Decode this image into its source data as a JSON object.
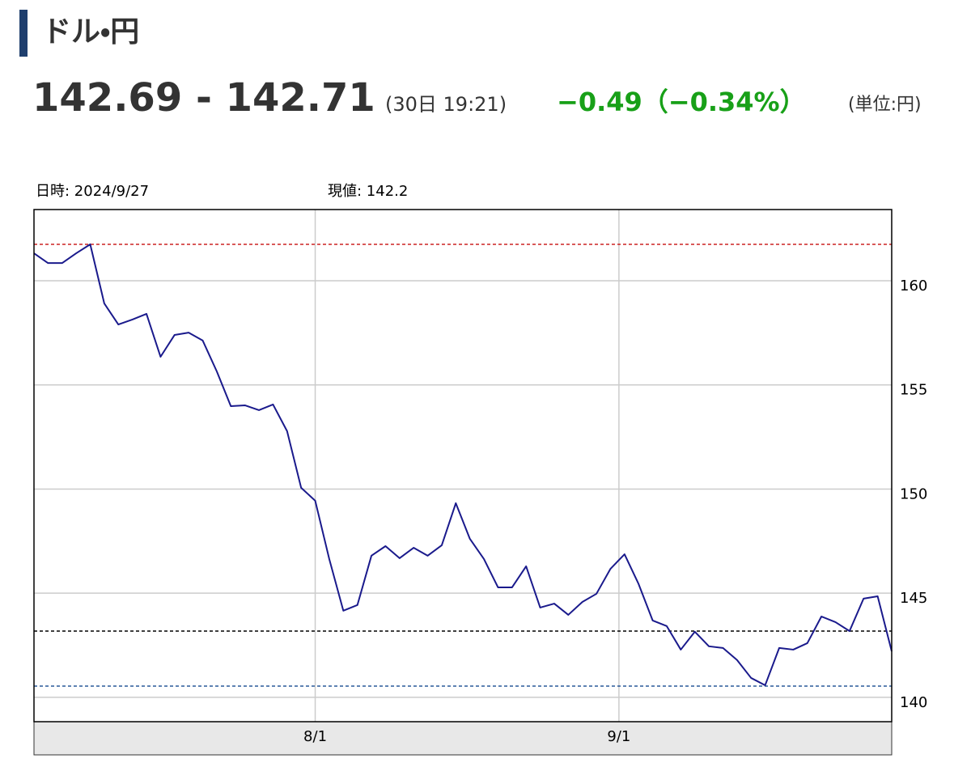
{
  "header": {
    "title": "ドル・円",
    "price": "142.69 - 142.71",
    "time": "(30日 19:21)",
    "change": "−0.49（−0.34%）",
    "unit": "(単位:円)"
  },
  "info": {
    "date": "日時: 2024/9/27",
    "current": "現値: 142.2"
  },
  "chart_data": {
    "type": "line",
    "x": [
      0,
      1,
      2,
      3,
      4,
      5,
      6,
      7,
      8,
      9,
      10,
      11,
      12,
      13,
      14,
      15,
      16,
      17,
      18,
      19,
      20,
      21,
      22,
      23,
      24,
      25,
      26,
      27,
      28,
      29,
      30,
      31,
      32,
      33,
      34,
      35,
      36,
      37,
      38,
      39,
      40,
      41,
      42,
      43,
      44,
      45,
      46,
      47,
      48,
      49,
      50,
      51,
      52,
      53,
      54,
      55,
      56,
      57,
      58,
      59,
      60,
      61
    ],
    "series": [
      {
        "color": "#1a1a8c",
        "values": [
          161.32,
          160.85,
          160.85,
          161.32,
          161.75,
          158.91,
          157.9,
          158.14,
          158.41,
          156.35,
          157.4,
          157.51,
          157.13,
          155.65,
          153.98,
          154.02,
          153.79,
          154.06,
          152.78,
          150.06,
          149.44,
          146.64,
          144.16,
          144.43,
          146.8,
          147.26,
          146.68,
          147.18,
          146.8,
          147.3,
          149.32,
          147.61,
          146.64,
          145.28,
          145.28,
          146.29,
          144.31,
          144.5,
          143.96,
          144.58,
          144.97,
          146.17,
          146.87,
          145.44,
          143.69,
          143.42,
          142.29,
          143.15,
          142.45,
          142.37,
          141.79,
          140.93,
          140.58,
          142.37,
          142.29,
          142.6,
          143.88,
          143.61,
          143.18,
          144.74,
          144.85,
          142.21
        ]
      }
    ],
    "xlim": [
      0,
      61
    ],
    "xticks": [
      {
        "value": 20,
        "label": "8/1"
      },
      {
        "value": 41.6,
        "label": "9/1"
      }
    ],
    "ylim": [
      138.83,
      163.42
    ],
    "yticks": [
      140,
      145,
      150,
      155,
      160
    ],
    "grid": true,
    "ref_lines": [
      {
        "value": 161.75,
        "color": "#cc2222"
      },
      {
        "value": 143.18,
        "color": "#000000"
      },
      {
        "value": 140.54,
        "color": "#2a5a9a"
      }
    ]
  }
}
